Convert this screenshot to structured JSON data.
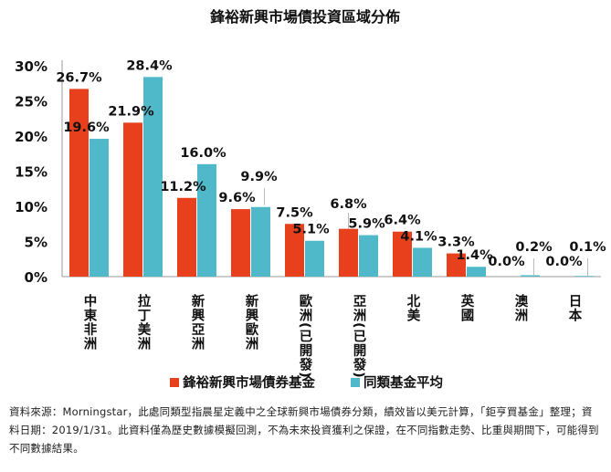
{
  "chart_data": {
    "type": "bar",
    "title": "鋒裕新興市場債投資區域分佈",
    "categories": [
      "中東非洲",
      "拉丁美洲",
      "新興亞洲",
      "新興歐洲",
      "歐洲(已開發)",
      "亞洲(已開發)",
      "北美",
      "英國",
      "澳洲",
      "日本"
    ],
    "series": [
      {
        "name": "鋒裕新興市場債券基金",
        "color": "#e8401c",
        "values": [
          26.7,
          21.9,
          11.2,
          9.6,
          7.5,
          6.8,
          6.4,
          3.3,
          0.0,
          0.0
        ]
      },
      {
        "name": "同類基金平均",
        "color": "#4fb8c9",
        "values": [
          19.6,
          28.4,
          16.0,
          9.9,
          5.1,
          5.9,
          4.1,
          1.4,
          0.2,
          0.1
        ]
      }
    ],
    "data_labels_a": [
      "26.7%",
      "21.9%",
      "11.2%",
      "9.6%",
      "7.5%",
      "6.8%",
      "6.4%",
      "3.3%",
      "0.0%",
      "0.0%"
    ],
    "data_labels_b": [
      "19.6%",
      "28.4%",
      "16.0%",
      "9.9%",
      "5.1%",
      "5.9%",
      "4.1%",
      "1.4%",
      "0.2%",
      "0.1%"
    ],
    "y_ticks": [
      "0%",
      "5%",
      "10%",
      "15%",
      "20%",
      "25%",
      "30%"
    ],
    "y_tick_values": [
      0,
      5,
      10,
      15,
      20,
      25,
      30
    ],
    "ylim": [
      0,
      30
    ],
    "grid": false,
    "legend_position": "bottom"
  },
  "footnote": "資料來源：Morningstar，此處同類型指晨星定義中之全球新興市場債券分類，績效皆以美元計算，「鉅亨買基金」整理；資料日期：2019/1/31。此資料僅為歷史數據模擬回測，不為未來投資獲利之保證，在不同指數走勢、比重與期間下，可能得到不同數據結果。"
}
